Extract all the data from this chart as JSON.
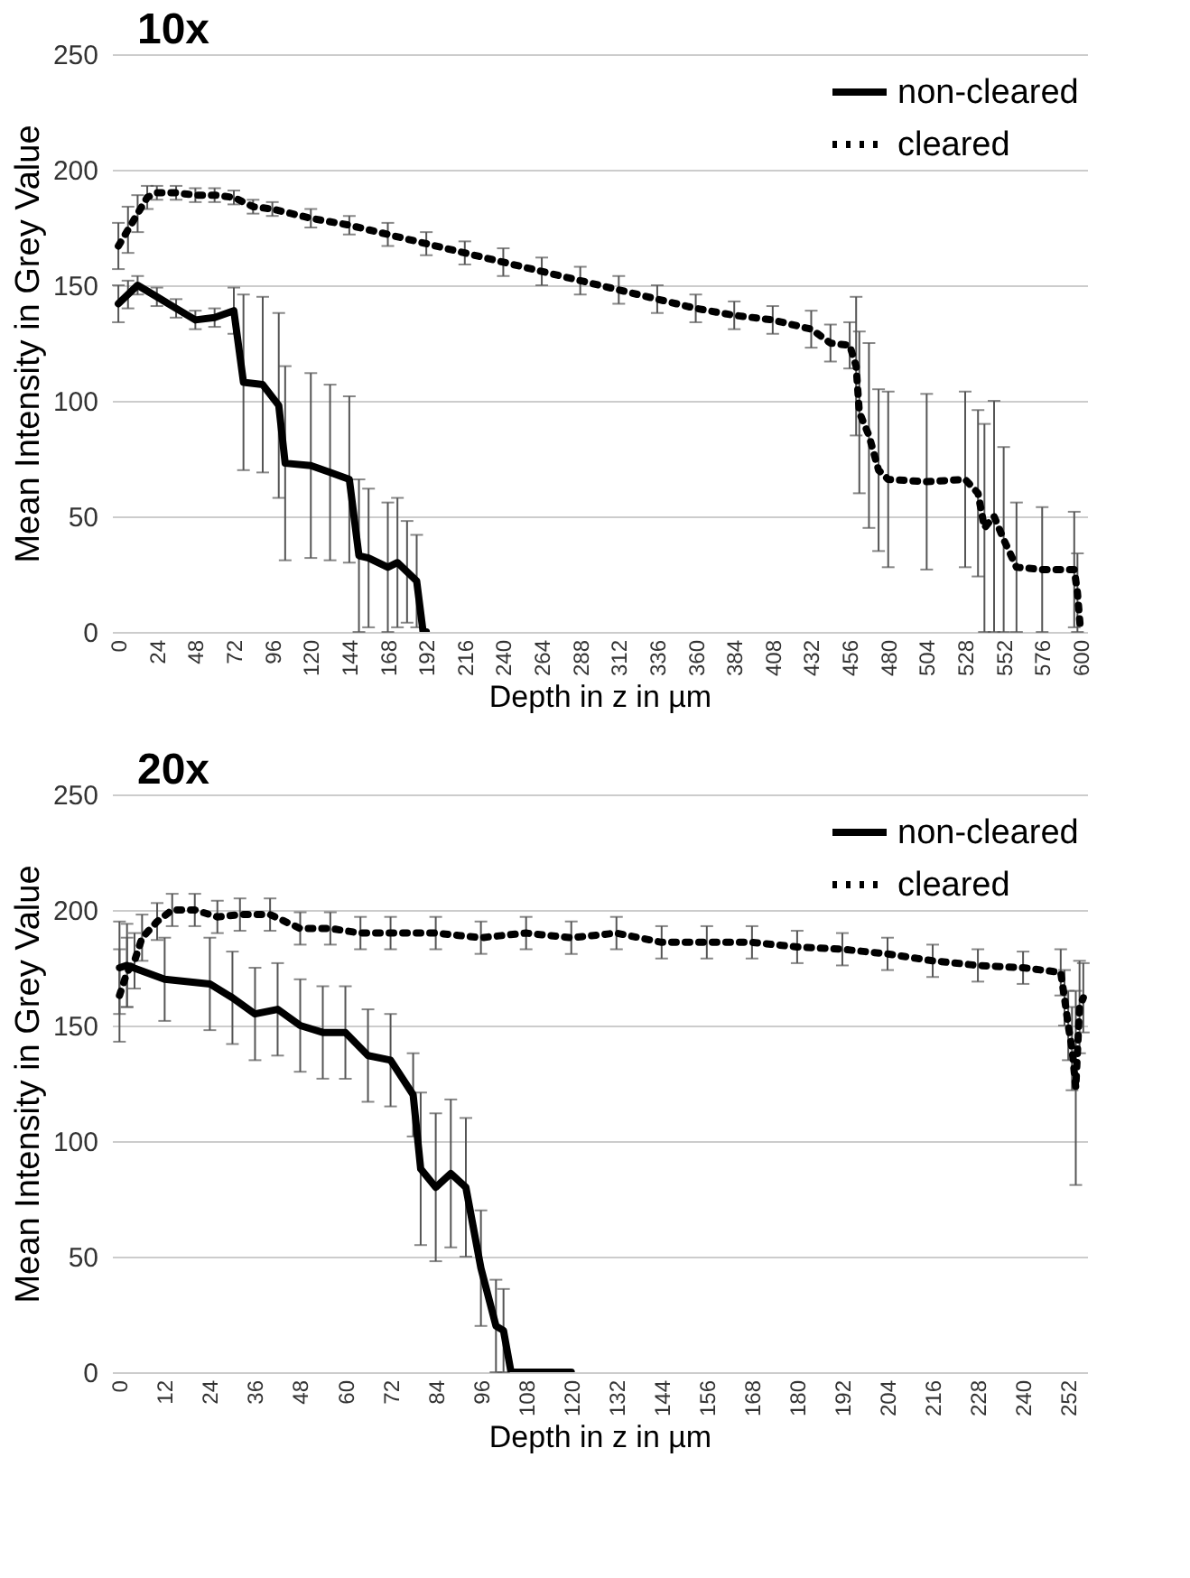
{
  "chart_data": [
    {
      "type": "line",
      "title": "10x",
      "xlabel": "Depth in z in µm",
      "ylabel": "Mean Intensity in Grey Value",
      "xlim": [
        -4,
        604
      ],
      "xticks": [
        0,
        24,
        48,
        72,
        96,
        120,
        144,
        168,
        192,
        216,
        240,
        264,
        288,
        312,
        336,
        360,
        384,
        408,
        432,
        456,
        480,
        504,
        528,
        552,
        576,
        600
      ],
      "ylim": [
        0,
        250
      ],
      "yticks": [
        0,
        50,
        100,
        150,
        200,
        250
      ],
      "grid": "y",
      "legend": "top right",
      "series": [
        {
          "name": "non-cleared",
          "color": "#000000",
          "line_style": "solid",
          "x": [
            0,
            6,
            12,
            24,
            36,
            48,
            60,
            72,
            78,
            90,
            100,
            104,
            120,
            132,
            144,
            150,
            156,
            168,
            174,
            180,
            186,
            190,
            192
          ],
          "values": [
            142,
            146,
            150,
            145,
            140,
            135,
            136,
            139,
            108,
            107,
            98,
            73,
            72,
            69,
            66,
            33,
            32,
            28,
            30,
            26,
            22,
            0,
            0
          ],
          "errors": [
            8,
            6,
            4,
            4,
            4,
            4,
            4,
            10,
            38,
            38,
            40,
            42,
            40,
            38,
            36,
            33,
            30,
            28,
            28,
            22,
            20,
            null,
            null
          ]
        },
        {
          "name": "cleared",
          "color": "#000000",
          "line_style": "dotted",
          "x": [
            0,
            6,
            12,
            18,
            24,
            36,
            48,
            60,
            72,
            84,
            96,
            120,
            144,
            168,
            192,
            216,
            240,
            264,
            288,
            312,
            336,
            360,
            384,
            408,
            432,
            444,
            456,
            460,
            462,
            468,
            474,
            480,
            504,
            528,
            536,
            540,
            546,
            552,
            560,
            576,
            596,
            598,
            600
          ],
          "values": [
            167,
            174,
            181,
            188,
            190,
            190,
            189,
            189,
            188,
            184,
            183,
            179,
            176,
            172,
            168,
            164,
            160,
            156,
            152,
            148,
            144,
            140,
            137,
            135,
            131,
            125,
            124,
            115,
            95,
            85,
            70,
            66,
            65,
            66,
            60,
            45,
            50,
            40,
            28,
            27,
            27,
            17,
            0
          ],
          "errors": [
            10,
            10,
            8,
            5,
            3,
            3,
            3,
            3,
            3,
            3,
            3,
            4,
            4,
            5,
            5,
            5,
            6,
            6,
            6,
            6,
            6,
            6,
            6,
            6,
            8,
            8,
            10,
            30,
            35,
            40,
            35,
            38,
            38,
            38,
            36,
            45,
            50,
            40,
            28,
            27,
            25,
            17,
            null
          ]
        }
      ]
    },
    {
      "type": "line",
      "title": "20x",
      "xlabel": "Depth in z in µm",
      "ylabel": "Mean Intensity in Grey Value",
      "xlim": [
        -2,
        257
      ],
      "xticks": [
        0,
        12,
        24,
        36,
        48,
        60,
        72,
        84,
        96,
        108,
        120,
        132,
        144,
        156,
        168,
        180,
        192,
        204,
        216,
        228,
        240,
        252
      ],
      "ylim": [
        0,
        250
      ],
      "yticks": [
        0,
        50,
        100,
        150,
        200,
        250
      ],
      "grid": "y",
      "legend": "top right",
      "series": [
        {
          "name": "non-cleared",
          "color": "#000000",
          "line_style": "solid",
          "x": [
            0,
            2,
            12,
            24,
            30,
            36,
            42,
            48,
            54,
            60,
            66,
            72,
            78,
            80,
            84,
            88,
            92,
            96,
            100,
            102,
            104,
            120
          ],
          "values": [
            175,
            176,
            170,
            168,
            162,
            155,
            157,
            150,
            147,
            147,
            137,
            135,
            120,
            88,
            80,
            86,
            80,
            45,
            20,
            18,
            0,
            0
          ],
          "errors": [
            20,
            18,
            18,
            20,
            20,
            20,
            20,
            20,
            20,
            20,
            20,
            20,
            18,
            33,
            32,
            32,
            30,
            25,
            20,
            18,
            null,
            null
          ]
        },
        {
          "name": "cleared",
          "color": "#000000",
          "line_style": "dotted",
          "x": [
            0,
            2,
            4,
            6,
            10,
            14,
            20,
            26,
            32,
            40,
            48,
            56,
            64,
            72,
            84,
            96,
            108,
            120,
            132,
            144,
            156,
            168,
            180,
            192,
            204,
            216,
            228,
            240,
            250,
            251,
            252,
            253,
            254,
            255,
            256
          ],
          "values": [
            163,
            173,
            178,
            188,
            195,
            200,
            200,
            197,
            198,
            198,
            192,
            192,
            190,
            190,
            190,
            188,
            190,
            188,
            190,
            186,
            186,
            186,
            184,
            183,
            181,
            178,
            176,
            175,
            173,
            162,
            150,
            140,
            123,
            158,
            162
          ],
          "errors": [
            20,
            15,
            12,
            10,
            8,
            7,
            7,
            7,
            7,
            7,
            7,
            7,
            7,
            7,
            7,
            7,
            7,
            7,
            7,
            7,
            7,
            7,
            7,
            7,
            7,
            7,
            7,
            7,
            10,
            12,
            15,
            18,
            42,
            20,
            15
          ]
        }
      ]
    }
  ]
}
